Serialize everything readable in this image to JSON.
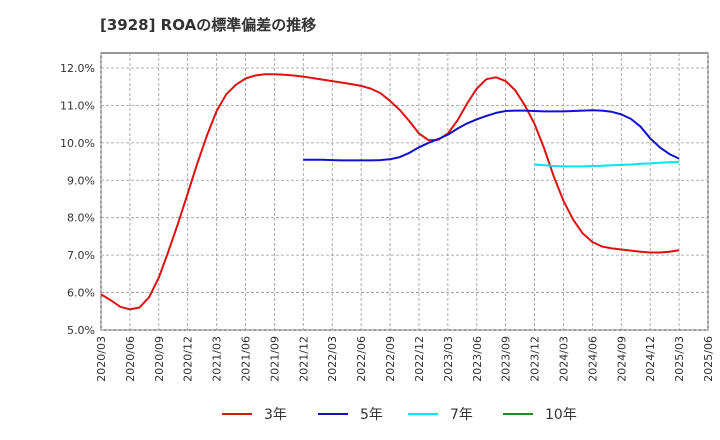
{
  "chart_data": {
    "type": "line",
    "title": "[3928]  ROAの標準偏差の推移",
    "xlabel": "",
    "ylabel": "",
    "x_ticks": [
      "2020/03",
      "2020/06",
      "2020/09",
      "2020/12",
      "2021/03",
      "2021/06",
      "2021/09",
      "2021/12",
      "2022/03",
      "2022/06",
      "2022/09",
      "2022/12",
      "2023/03",
      "2023/06",
      "2023/09",
      "2023/12",
      "2024/03",
      "2024/06",
      "2024/09",
      "2024/12",
      "2025/03",
      "2025/06"
    ],
    "y_ticks": [
      "5.0%",
      "6.0%",
      "7.0%",
      "8.0%",
      "9.0%",
      "10.0%",
      "11.0%",
      "12.0%"
    ],
    "ylim": [
      5.0,
      12.4
    ],
    "grid": true,
    "legend_position": "bottom",
    "series": [
      {
        "name": "3年",
        "color": "#dd1111",
        "points": [
          [
            "2020/03",
            5.95
          ],
          [
            "2020/04",
            5.8
          ],
          [
            "2020/05",
            5.62
          ],
          [
            "2020/06",
            5.55
          ],
          [
            "2020/07",
            5.6
          ],
          [
            "2020/08",
            5.88
          ],
          [
            "2020/09",
            6.4
          ],
          [
            "2020/10",
            7.1
          ],
          [
            "2020/11",
            7.85
          ],
          [
            "2020/12",
            8.65
          ],
          [
            "2021/01",
            9.45
          ],
          [
            "2021/02",
            10.2
          ],
          [
            "2021/03",
            10.85
          ],
          [
            "2021/04",
            11.3
          ],
          [
            "2021/05",
            11.55
          ],
          [
            "2021/06",
            11.72
          ],
          [
            "2021/07",
            11.8
          ],
          [
            "2021/08",
            11.83
          ],
          [
            "2021/09",
            11.83
          ],
          [
            "2021/10",
            11.82
          ],
          [
            "2021/11",
            11.8
          ],
          [
            "2021/12",
            11.77
          ],
          [
            "2022/01",
            11.73
          ],
          [
            "2022/02",
            11.69
          ],
          [
            "2022/03",
            11.65
          ],
          [
            "2022/04",
            11.61
          ],
          [
            "2022/05",
            11.57
          ],
          [
            "2022/06",
            11.52
          ],
          [
            "2022/07",
            11.45
          ],
          [
            "2022/08",
            11.33
          ],
          [
            "2022/09",
            11.12
          ],
          [
            "2022/10",
            10.88
          ],
          [
            "2022/11",
            10.58
          ],
          [
            "2022/12",
            10.25
          ],
          [
            "2023/01",
            10.07
          ],
          [
            "2023/02",
            10.08
          ],
          [
            "2023/03",
            10.25
          ],
          [
            "2023/04",
            10.6
          ],
          [
            "2023/05",
            11.05
          ],
          [
            "2023/06",
            11.45
          ],
          [
            "2023/07",
            11.7
          ],
          [
            "2023/08",
            11.75
          ],
          [
            "2023/09",
            11.65
          ],
          [
            "2023/10",
            11.4
          ],
          [
            "2023/11",
            11.0
          ],
          [
            "2023/12",
            10.5
          ],
          [
            "2024/01",
            9.85
          ],
          [
            "2024/02",
            9.1
          ],
          [
            "2024/03",
            8.45
          ],
          [
            "2024/04",
            7.95
          ],
          [
            "2024/05",
            7.58
          ],
          [
            "2024/06",
            7.35
          ],
          [
            "2024/07",
            7.23
          ],
          [
            "2024/08",
            7.18
          ],
          [
            "2024/09",
            7.15
          ],
          [
            "2024/10",
            7.12
          ],
          [
            "2024/11",
            7.09
          ],
          [
            "2024/12",
            7.07
          ],
          [
            "2025/01",
            7.07
          ],
          [
            "2025/02",
            7.09
          ],
          [
            "2025/03",
            7.13
          ]
        ]
      },
      {
        "name": "5年",
        "color": "#1111cc",
        "points": [
          [
            "2021/12",
            9.55
          ],
          [
            "2022/01",
            9.55
          ],
          [
            "2022/02",
            9.55
          ],
          [
            "2022/03",
            9.54
          ],
          [
            "2022/04",
            9.53
          ],
          [
            "2022/05",
            9.53
          ],
          [
            "2022/06",
            9.53
          ],
          [
            "2022/07",
            9.53
          ],
          [
            "2022/08",
            9.54
          ],
          [
            "2022/09",
            9.56
          ],
          [
            "2022/10",
            9.62
          ],
          [
            "2022/11",
            9.73
          ],
          [
            "2022/12",
            9.88
          ],
          [
            "2023/01",
            10.0
          ],
          [
            "2023/02",
            10.1
          ],
          [
            "2023/03",
            10.22
          ],
          [
            "2023/04",
            10.38
          ],
          [
            "2023/05",
            10.52
          ],
          [
            "2023/06",
            10.63
          ],
          [
            "2023/07",
            10.72
          ],
          [
            "2023/08",
            10.8
          ],
          [
            "2023/09",
            10.85
          ],
          [
            "2023/10",
            10.86
          ],
          [
            "2023/11",
            10.86
          ],
          [
            "2023/12",
            10.85
          ],
          [
            "2024/01",
            10.84
          ],
          [
            "2024/02",
            10.84
          ],
          [
            "2024/03",
            10.84
          ],
          [
            "2024/04",
            10.85
          ],
          [
            "2024/05",
            10.86
          ],
          [
            "2024/06",
            10.87
          ],
          [
            "2024/07",
            10.86
          ],
          [
            "2024/08",
            10.83
          ],
          [
            "2024/09",
            10.76
          ],
          [
            "2024/10",
            10.64
          ],
          [
            "2024/11",
            10.43
          ],
          [
            "2024/12",
            10.12
          ],
          [
            "2025/01",
            9.88
          ],
          [
            "2025/02",
            9.7
          ],
          [
            "2025/03",
            9.58
          ]
        ]
      },
      {
        "name": "7年",
        "color": "#00e5ee",
        "points": [
          [
            "2023/12",
            9.42
          ],
          [
            "2024/01",
            9.4
          ],
          [
            "2024/02",
            9.38
          ],
          [
            "2024/03",
            9.37
          ],
          [
            "2024/04",
            9.37
          ],
          [
            "2024/05",
            9.37
          ],
          [
            "2024/06",
            9.38
          ],
          [
            "2024/07",
            9.39
          ],
          [
            "2024/08",
            9.4
          ],
          [
            "2024/09",
            9.41
          ],
          [
            "2024/10",
            9.42
          ],
          [
            "2024/11",
            9.44
          ],
          [
            "2024/12",
            9.45
          ],
          [
            "2025/01",
            9.47
          ],
          [
            "2025/02",
            9.48
          ],
          [
            "2025/03",
            9.49
          ]
        ]
      },
      {
        "name": "10年",
        "color": "#228b22",
        "points": []
      }
    ]
  }
}
